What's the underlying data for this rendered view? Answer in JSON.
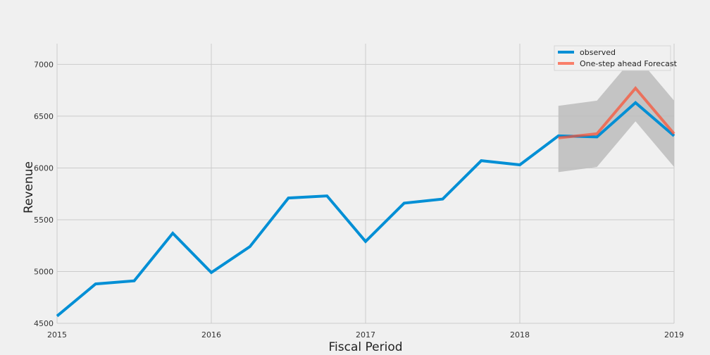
{
  "chart_data": {
    "type": "line",
    "title": "",
    "xlabel": "Fiscal Period",
    "ylabel": "Revenue",
    "xlim": [
      2015,
      2019
    ],
    "ylim": [
      4500,
      7200
    ],
    "x_ticks": [
      {
        "value": 2015,
        "label": "2015"
      },
      {
        "value": 2016,
        "label": "2016"
      },
      {
        "value": 2017,
        "label": "2017"
      },
      {
        "value": 2018,
        "label": "2018"
      },
      {
        "value": 2019,
        "label": "2019"
      }
    ],
    "y_ticks": [
      {
        "value": 4500,
        "label": "4500"
      },
      {
        "value": 5000,
        "label": "5000"
      },
      {
        "value": 5500,
        "label": "5500"
      },
      {
        "value": 6000,
        "label": "6000"
      },
      {
        "value": 6500,
        "label": "6500"
      },
      {
        "value": 7000,
        "label": "7000"
      }
    ],
    "grid": true,
    "legend_position": "top-right",
    "series": [
      {
        "name": "observed",
        "color": "#008fd5",
        "x": [
          2015,
          2015.25,
          2015.5,
          2015.75,
          2016,
          2016.25,
          2016.5,
          2016.75,
          2017,
          2017.25,
          2017.5,
          2017.75,
          2018,
          2018.25,
          2018.5,
          2018.75,
          2019
        ],
        "y": [
          4570,
          4880,
          4910,
          5370,
          4990,
          5240,
          5710,
          5730,
          5290,
          5660,
          5700,
          6070,
          6030,
          6310,
          6300,
          6630,
          6310
        ]
      },
      {
        "name": "One-step ahead Forecast",
        "color": "#fc4f30",
        "x": [
          2018.25,
          2018.5,
          2018.75,
          2019
        ],
        "y": [
          6290,
          6330,
          6770,
          6330
        ]
      }
    ],
    "confidence_band": {
      "color": "#bcbcbc",
      "x": [
        2018.25,
        2018.5,
        2018.75,
        2019
      ],
      "lower": [
        5960,
        6010,
        6450,
        6010
      ],
      "upper": [
        6600,
        6650,
        7090,
        6650
      ]
    }
  }
}
